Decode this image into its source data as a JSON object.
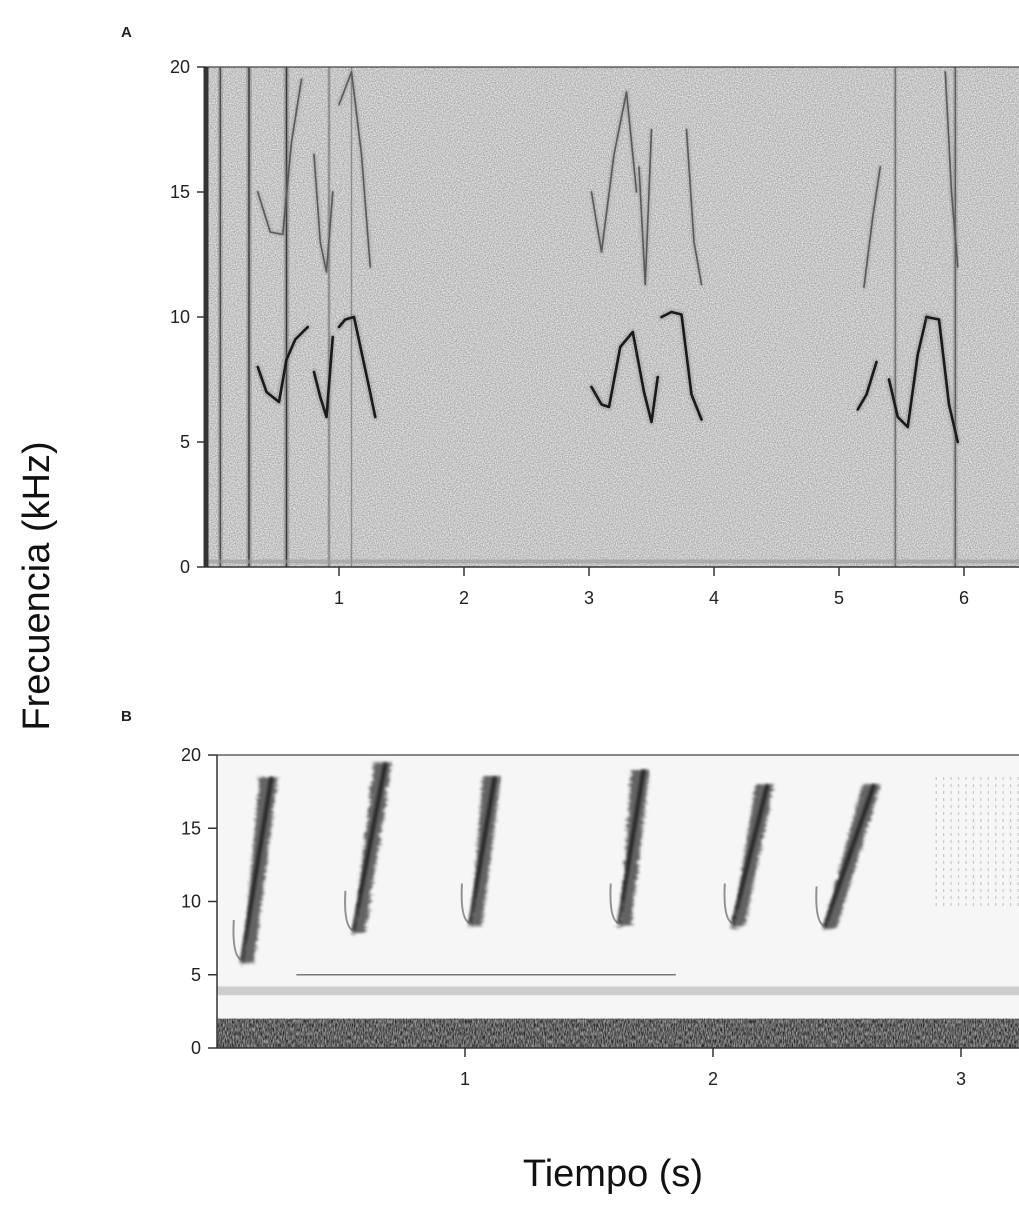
{
  "figure": {
    "ylabel": "Frecuencia (kHz)",
    "xlabel": "Tiempo (s)"
  },
  "chart_data": [
    {
      "panel": "A",
      "type": "heatmap",
      "xlabel": "Tiempo (s)",
      "ylabel": "Frecuencia (kHz)",
      "xlim": [
        0,
        6.5
      ],
      "ylim": [
        0,
        20
      ],
      "xticks": [
        1,
        2,
        3,
        4,
        5,
        6
      ],
      "yticks": [
        0,
        5,
        10,
        15,
        20
      ],
      "background": "#e9e9e9",
      "ink": "#1a1a1a",
      "traces": [
        {
          "x": [
            0.35,
            0.42,
            0.52,
            0.58,
            0.65,
            0.75
          ],
          "y": [
            8.0,
            7.0,
            6.6,
            8.3,
            9.1,
            9.6
          ]
        },
        {
          "x": [
            0.8,
            0.85,
            0.9,
            0.95
          ],
          "y": [
            7.8,
            6.8,
            6.0,
            9.2
          ]
        },
        {
          "x": [
            1.0,
            1.05,
            1.12,
            1.18,
            1.24,
            1.29
          ],
          "y": [
            9.6,
            9.9,
            10.0,
            8.6,
            7.2,
            6.0
          ]
        },
        {
          "x": [
            3.02,
            3.1,
            3.16,
            3.25,
            3.35,
            3.44,
            3.5,
            3.55
          ],
          "y": [
            7.2,
            6.5,
            6.4,
            8.8,
            9.4,
            7.0,
            5.8,
            7.6
          ]
        },
        {
          "x": [
            3.58,
            3.66,
            3.74,
            3.82,
            3.9
          ],
          "y": [
            10.0,
            10.2,
            10.1,
            6.9,
            5.9
          ]
        },
        {
          "x": [
            5.15,
            5.22,
            5.3
          ],
          "y": [
            6.3,
            6.9,
            8.2
          ]
        },
        {
          "x": [
            5.4,
            5.47,
            5.55,
            5.63,
            5.7
          ],
          "y": [
            7.5,
            6.0,
            5.6,
            8.5,
            10.0
          ]
        },
        {
          "x": [
            5.7,
            5.8,
            5.88,
            5.95
          ],
          "y": [
            10.0,
            9.9,
            6.5,
            5.0
          ]
        },
        {
          "x": [
            0.35,
            0.45,
            0.55,
            0.62,
            0.7
          ],
          "y": [
            15.0,
            13.4,
            13.3,
            17.0,
            19.5
          ]
        },
        {
          "x": [
            0.8,
            0.85,
            0.9,
            0.95
          ],
          "y": [
            16.5,
            13.0,
            11.8,
            15.0
          ]
        },
        {
          "x": [
            1.0,
            1.1,
            1.18,
            1.25
          ],
          "y": [
            18.5,
            19.8,
            16.5,
            12.0
          ]
        },
        {
          "x": [
            3.02,
            3.1,
            3.2,
            3.3,
            3.38
          ],
          "y": [
            15.0,
            12.6,
            16.5,
            19.0,
            15.0
          ]
        },
        {
          "x": [
            3.4,
            3.45,
            3.5
          ],
          "y": [
            16.0,
            11.3,
            17.5
          ]
        },
        {
          "x": [
            3.78,
            3.84,
            3.9
          ],
          "y": [
            17.5,
            13.0,
            11.3
          ]
        },
        {
          "x": [
            5.2,
            5.27,
            5.33
          ],
          "y": [
            11.2,
            14.0,
            16.0
          ]
        },
        {
          "x": [
            5.85,
            5.9,
            5.95
          ],
          "y": [
            19.8,
            15.0,
            12.0
          ]
        }
      ],
      "bands": [
        {
          "x": 0.05,
          "weight": 0.9
        },
        {
          "x": 0.28,
          "weight": 1.0
        },
        {
          "x": 0.58,
          "weight": 1.0
        },
        {
          "x": 0.92,
          "weight": 0.6
        },
        {
          "x": 1.1,
          "weight": 0.5
        },
        {
          "x": 5.45,
          "weight": 0.7
        },
        {
          "x": 5.93,
          "weight": 0.8
        }
      ]
    },
    {
      "panel": "B",
      "type": "heatmap",
      "xlabel": "Tiempo (s)",
      "ylabel": "Frecuencia (kHz)",
      "xlim": [
        0,
        3.25
      ],
      "ylim": [
        0,
        20
      ],
      "xticks": [
        1,
        2,
        3
      ],
      "yticks": [
        0,
        5,
        10,
        15,
        20
      ],
      "background": "#f4f4f4",
      "ink": "#111111",
      "noise_band_khz": [
        0,
        2
      ],
      "syllables": [
        {
          "x_start": 0.1,
          "y_start": 6.0,
          "x_end": 0.22,
          "y_end": 18.5
        },
        {
          "x_start": 0.55,
          "y_start": 8.0,
          "x_end": 0.68,
          "y_end": 19.5
        },
        {
          "x_start": 1.02,
          "y_start": 8.5,
          "x_end": 1.12,
          "y_end": 18.5
        },
        {
          "x_start": 1.62,
          "y_start": 8.5,
          "x_end": 1.72,
          "y_end": 19.0
        },
        {
          "x_start": 2.08,
          "y_start": 8.5,
          "x_end": 2.22,
          "y_end": 18.0
        },
        {
          "x_start": 2.45,
          "y_start": 8.3,
          "x_end": 2.65,
          "y_end": 18.0
        }
      ],
      "faint_band": {
        "x_start": 2.9,
        "x_end": 3.25,
        "y_start": 9.5,
        "y_end": 18.5
      },
      "hum_line_khz": 5.0
    }
  ]
}
